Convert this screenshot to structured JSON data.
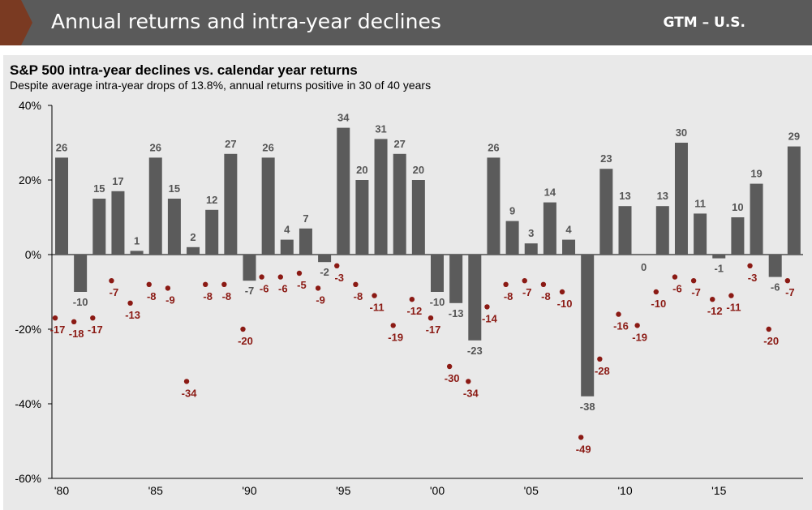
{
  "header": {
    "title": "Annual returns and intra-year declines",
    "code": "GTM – U.S.",
    "accent_color": "#7a3a22",
    "banner_color": "#5a5a5a"
  },
  "chart_data": {
    "type": "bar",
    "title": "S&P 500 intra-year declines vs. calendar year returns",
    "subtitle": "Despite average intra-year drops of 13.8%, annual returns positive in 30 of 40 years",
    "xlabel": "",
    "ylabel": "",
    "ylim": [
      -60,
      40
    ],
    "y_ticks": [
      "40%",
      "20%",
      "0%",
      "-20%",
      "-40%",
      "-60%"
    ],
    "y_tick_values": [
      40,
      20,
      0,
      -20,
      -40,
      -60
    ],
    "x_tick_labels": [
      "'80",
      "'85",
      "'90",
      "'95",
      "'00",
      "'05",
      "'10",
      "'15"
    ],
    "x_tick_years": [
      1980,
      1985,
      1990,
      1995,
      2000,
      2005,
      2010,
      2015
    ],
    "years": [
      1980,
      1981,
      1982,
      1983,
      1984,
      1985,
      1986,
      1987,
      1988,
      1989,
      1990,
      1991,
      1992,
      1993,
      1994,
      1995,
      1996,
      1997,
      1998,
      1999,
      2000,
      2001,
      2002,
      2003,
      2004,
      2005,
      2006,
      2007,
      2008,
      2009,
      2010,
      2011,
      2012,
      2013,
      2014,
      2015,
      2016,
      2017,
      2018,
      2019
    ],
    "series": [
      {
        "kind": "bar",
        "color": "#5b5b5b",
        "values": [
          26,
          -10,
          15,
          17,
          1,
          26,
          15,
          2,
          12,
          27,
          -7,
          26,
          4,
          7,
          -2,
          34,
          20,
          31,
          27,
          20,
          -10,
          -13,
          -23,
          26,
          9,
          3,
          14,
          4,
          -38,
          23,
          13,
          0,
          13,
          30,
          11,
          -1,
          10,
          19,
          -6,
          29
        ],
        "labels": [
          "26",
          "-10",
          "15",
          "17",
          "1",
          "26",
          "15",
          "2",
          "12",
          "27",
          "-7",
          "26",
          "4",
          "7",
          "-2",
          "34",
          "20",
          "31",
          "27",
          "20",
          "-10",
          "-13",
          "-23",
          "26",
          "9",
          "3",
          "14",
          "4",
          "-38",
          "23",
          "13",
          "0",
          "13",
          "30",
          "11",
          "-1",
          "10",
          "19",
          "-6",
          "29"
        ]
      },
      {
        "kind": "dot",
        "color": "#8b1a14",
        "values": [
          -17,
          -18,
          -17,
          -7,
          -13,
          -8,
          -9,
          -34,
          -8,
          -8,
          -20,
          -6,
          -6,
          -5,
          -9,
          -3,
          -8,
          -11,
          -19,
          -12,
          -17,
          -30,
          -34,
          -14,
          -8,
          -7,
          -8,
          -10,
          -49,
          -28,
          -16,
          -19,
          -10,
          -6,
          -7,
          -12,
          -11,
          -3,
          -20,
          -7
        ],
        "labels": [
          "-17",
          "-18",
          "-17",
          "-7",
          "-13",
          "-8",
          "-9",
          "-34",
          "-8",
          "-8",
          "-20",
          "-6",
          "-6",
          "-5",
          "-9",
          "-3",
          "-8",
          "-11",
          "-19",
          "-12",
          "-17",
          "-30",
          "-34",
          "-14",
          "-8",
          "-7",
          "-8",
          "-10",
          "-49",
          "-28",
          "-16",
          "-19",
          "-10",
          "-6",
          "-7",
          "-12",
          "-11",
          "-3",
          "-20",
          "-7"
        ]
      }
    ]
  }
}
